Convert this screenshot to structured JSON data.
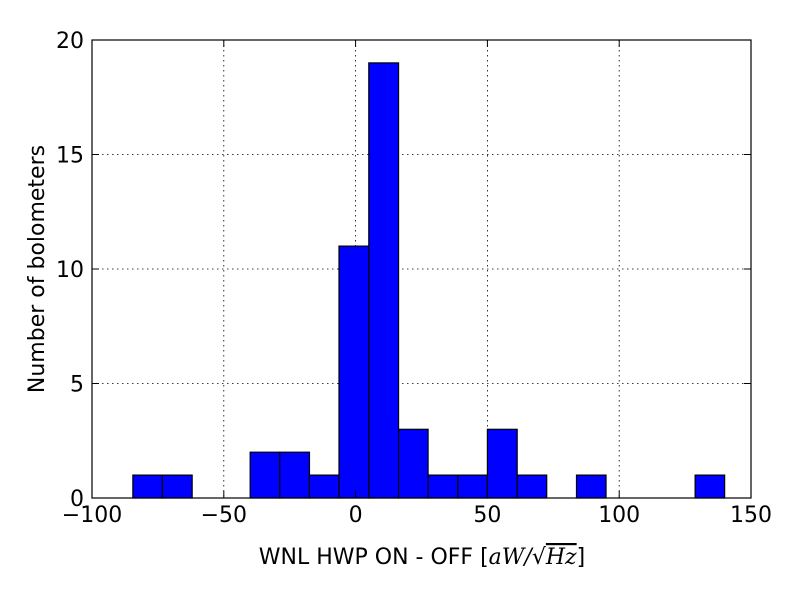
{
  "chart_data": {
    "type": "bar",
    "title": "",
    "xlabel_text": "WNL HWP ON - OFF",
    "xlabel_unit": "[aW/√Hz]",
    "xlabel_unit_parts": {
      "open": "[",
      "a": "a",
      "W": "W",
      "slash": "/",
      "sqrt": "√",
      "Hz": "Hz",
      "close": "]"
    },
    "ylabel": "Number of bolometers",
    "xlim": [
      -100,
      150
    ],
    "ylim": [
      0,
      20
    ],
    "xticks": [
      -100,
      -50,
      0,
      50,
      100,
      150
    ],
    "xtick_labels": [
      "−100",
      "−50",
      "0",
      "50",
      "100",
      "150"
    ],
    "yticks": [
      0,
      5,
      10,
      15,
      20
    ],
    "ytick_labels": [
      "0",
      "5",
      "10",
      "15",
      "20"
    ],
    "grid": true,
    "bar_color": "#0000ff",
    "bins": [
      {
        "x0": -84.5,
        "x1": -73.3,
        "count": 1
      },
      {
        "x0": -73.3,
        "x1": -62.0,
        "count": 1
      },
      {
        "x0": -40.0,
        "x1": -28.8,
        "count": 2
      },
      {
        "x0": -28.8,
        "x1": -17.5,
        "count": 2
      },
      {
        "x0": -17.5,
        "x1": -6.3,
        "count": 1
      },
      {
        "x0": -6.3,
        "x1": 5.0,
        "count": 11
      },
      {
        "x0": 5.0,
        "x1": 16.3,
        "count": 19
      },
      {
        "x0": 16.3,
        "x1": 27.5,
        "count": 3
      },
      {
        "x0": 27.5,
        "x1": 38.8,
        "count": 1
      },
      {
        "x0": 38.8,
        "x1": 50.0,
        "count": 1
      },
      {
        "x0": 50.0,
        "x1": 61.3,
        "count": 3
      },
      {
        "x0": 61.3,
        "x1": 72.5,
        "count": 1
      },
      {
        "x0": 83.8,
        "x1": 95.0,
        "count": 1
      },
      {
        "x0": 128.8,
        "x1": 140.0,
        "count": 1
      }
    ]
  }
}
